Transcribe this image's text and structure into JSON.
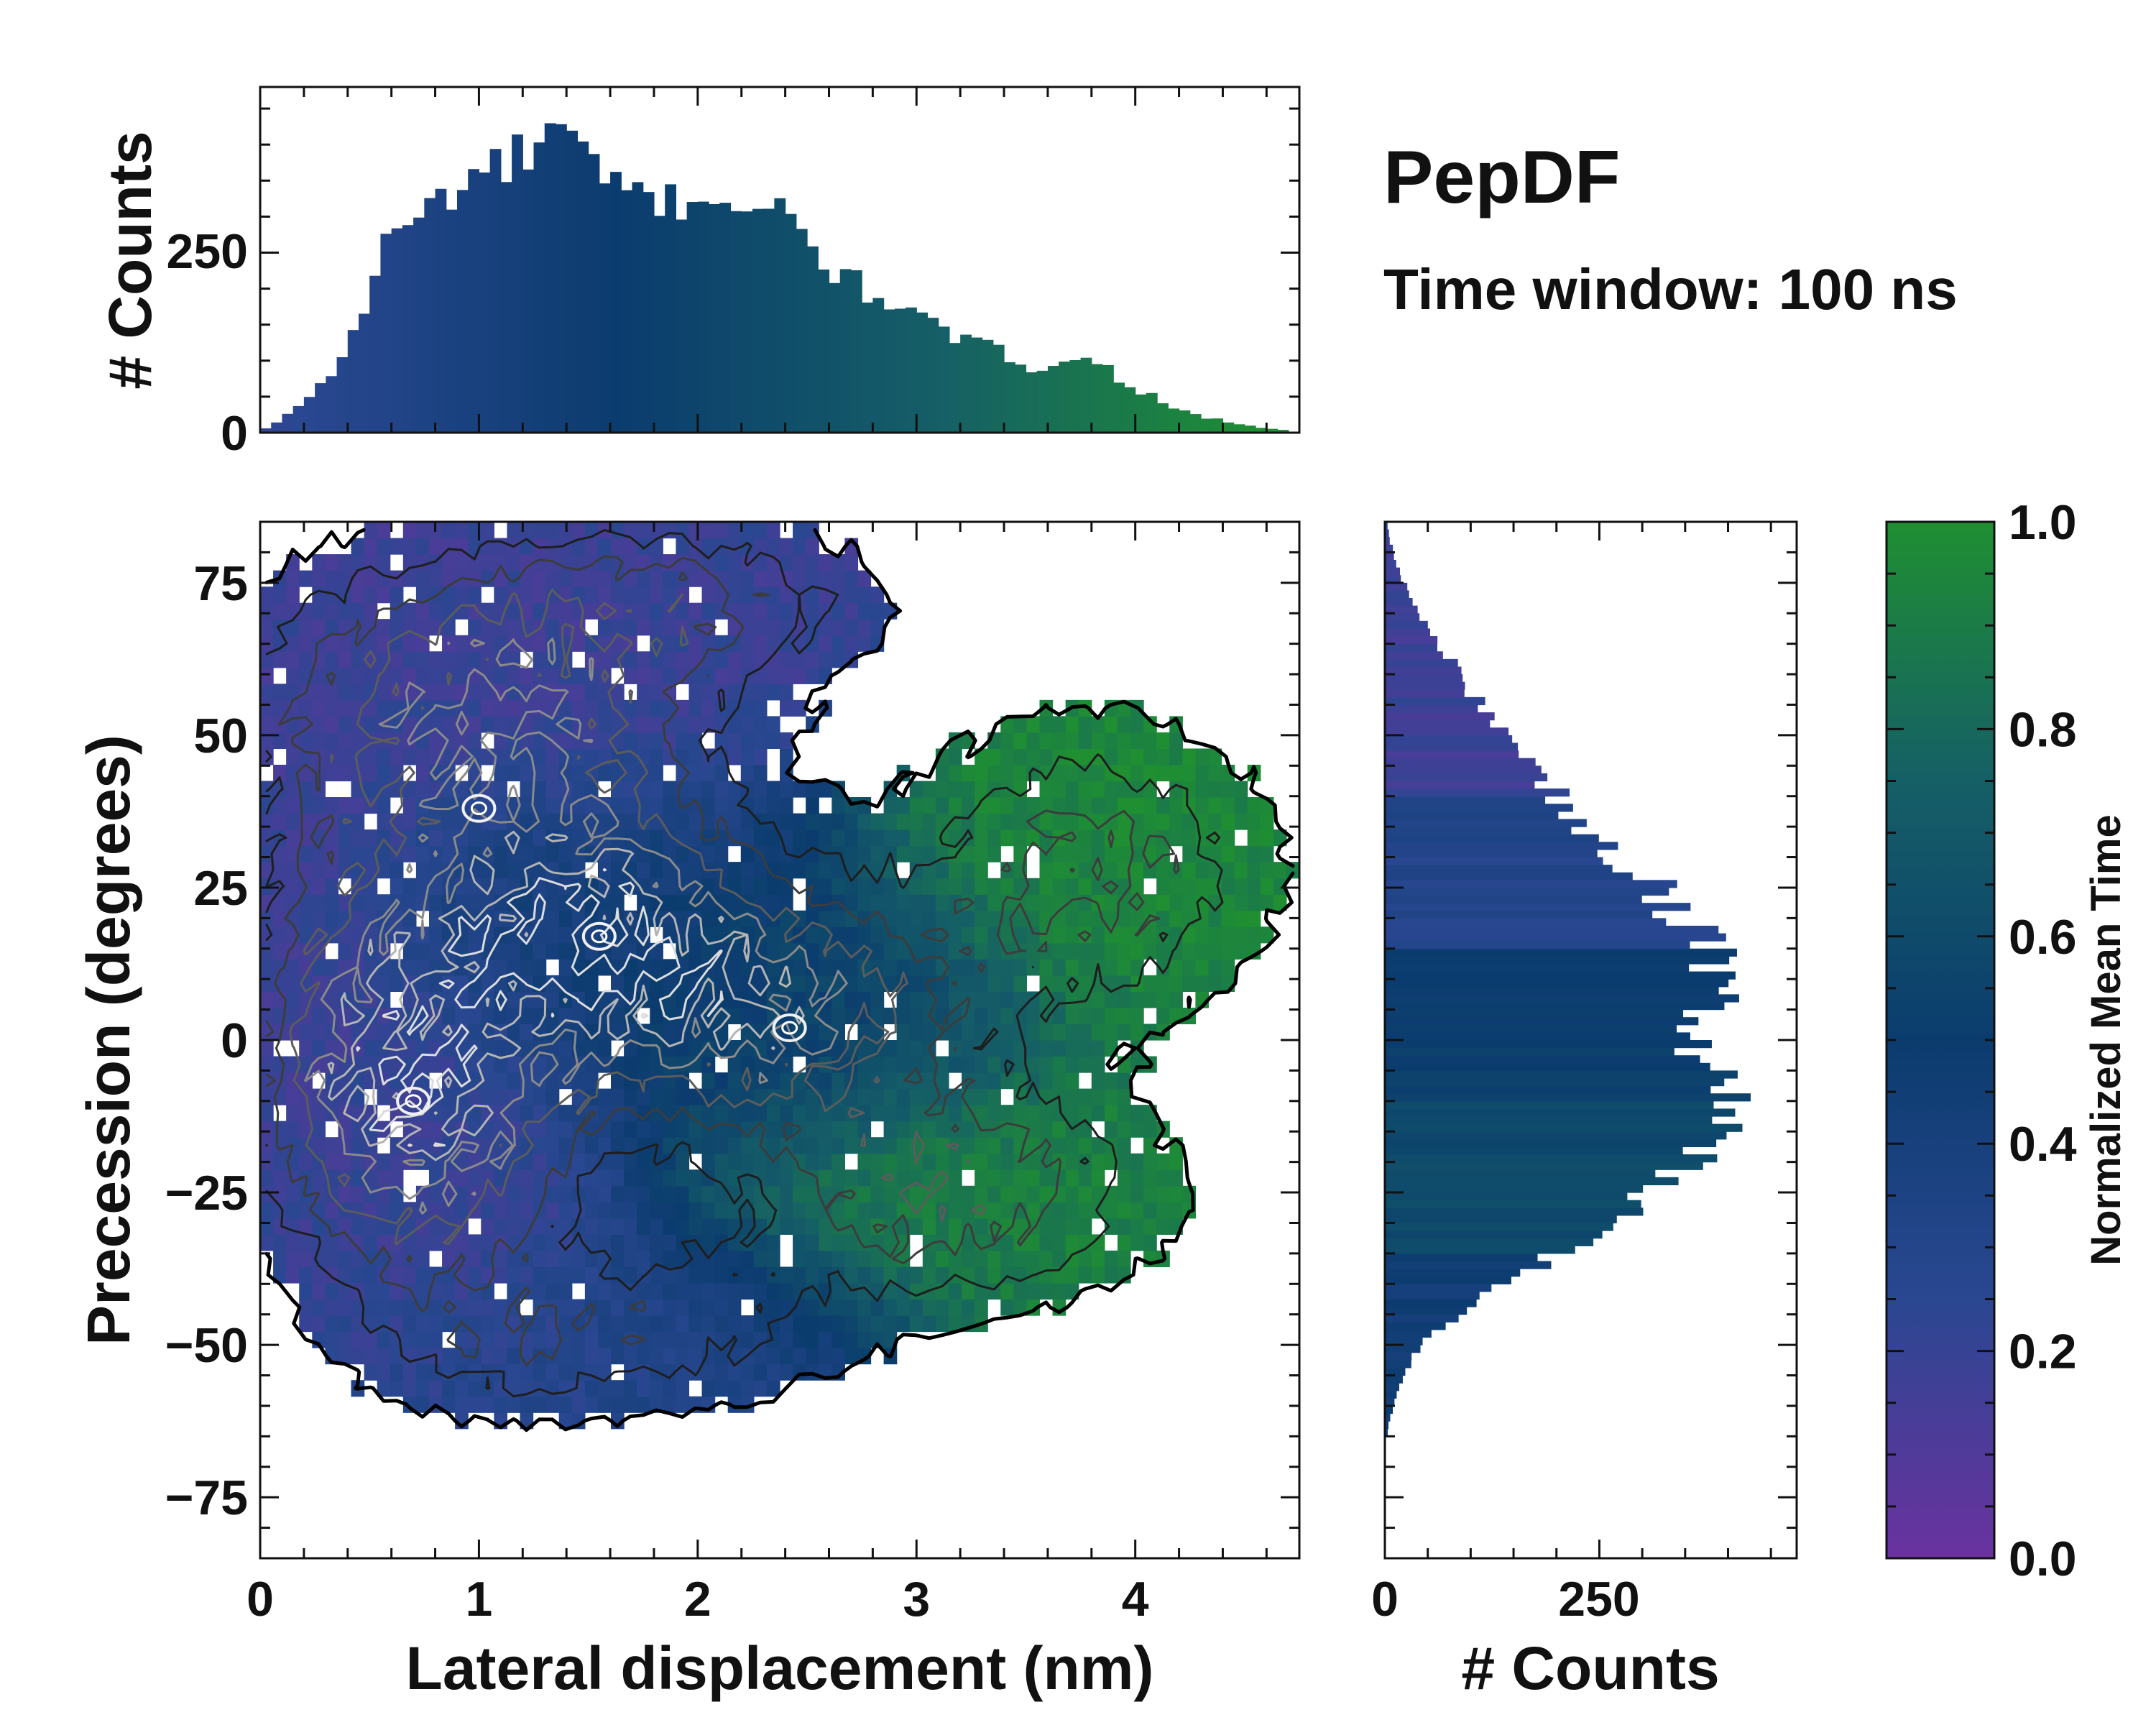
{
  "chart_data": [
    {
      "name": "top-marginal-histogram",
      "type": "bar",
      "xlim": [
        0,
        4.75
      ],
      "ylim": [
        0,
        480
      ],
      "ylabel": "# Counts",
      "yticks": [
        0,
        250
      ],
      "yticks_labels": [
        "0",
        "250"
      ],
      "bin_width": 0.05,
      "x": [
        0.05,
        0.15,
        0.25,
        0.35,
        0.45,
        0.55,
        0.65,
        0.75,
        0.85,
        0.95,
        1.05,
        1.15,
        1.25,
        1.35,
        1.45,
        1.55,
        1.65,
        1.75,
        1.85,
        1.95,
        2.05,
        2.15,
        2.25,
        2.35,
        2.45,
        2.55,
        2.65,
        2.75,
        2.85,
        2.95,
        3.05,
        3.15,
        3.25,
        3.35,
        3.45,
        3.55,
        3.65,
        3.75,
        3.85,
        3.95,
        4.05,
        4.15,
        4.25,
        4.35,
        4.45,
        4.55,
        4.65
      ],
      "values": [
        8,
        30,
        60,
        90,
        150,
        250,
        285,
        310,
        330,
        350,
        365,
        375,
        390,
        425,
        395,
        345,
        335,
        330,
        320,
        325,
        330,
        325,
        315,
        305,
        285,
        245,
        220,
        200,
        190,
        170,
        150,
        135,
        130,
        115,
        100,
        90,
        105,
        100,
        95,
        70,
        55,
        40,
        25,
        20,
        12,
        8,
        5
      ]
    },
    {
      "name": "right-marginal-histogram",
      "type": "bar",
      "orientation": "horizontal",
      "ylim": [
        -85,
        85
      ],
      "xlim": [
        0,
        480
      ],
      "xlabel": "# Counts",
      "xticks": [
        0,
        250
      ],
      "xticks_labels": [
        "0",
        "250"
      ],
      "bin_width": 2.5,
      "y": [
        -62.5,
        -57.5,
        -52.5,
        -47.5,
        -42.5,
        -37.5,
        -32.5,
        -27.5,
        -22.5,
        -17.5,
        -12.5,
        -7.5,
        -2.5,
        2.5,
        7.5,
        12.5,
        17.5,
        22.5,
        27.5,
        32.5,
        37.5,
        42.5,
        47.5,
        52.5,
        57.5,
        62.5,
        67.5,
        72.5,
        77.5,
        82.5
      ],
      "values": [
        5,
        15,
        30,
        60,
        110,
        170,
        230,
        280,
        320,
        380,
        420,
        395,
        360,
        350,
        380,
        390,
        370,
        330,
        300,
        250,
        210,
        190,
        150,
        120,
        100,
        75,
        50,
        30,
        15,
        5
      ]
    },
    {
      "name": "joint-density-map",
      "type": "heatmap",
      "xlabel": "Lateral displacement (nm)",
      "ylabel": "Precession (degrees)",
      "xlim": [
        0,
        4.75
      ],
      "ylim": [
        -85,
        85
      ],
      "xticks": [
        0,
        1,
        2,
        3,
        4
      ],
      "xticks_labels": [
        "0",
        "1",
        "2",
        "3",
        "4"
      ],
      "yticks": [
        -75,
        -50,
        -25,
        0,
        25,
        50,
        75
      ],
      "yticks_labels": [
        "−75",
        "−50",
        "−25",
        "0",
        "25",
        "50",
        "75"
      ],
      "color_meaning": "Normalized Mean Time",
      "blobs": [
        {
          "x": 1.0,
          "y": 55,
          "sx": 0.7,
          "sy": 16,
          "w": 1.0,
          "t": 0.18
        },
        {
          "x": 1.4,
          "y": 20,
          "sx": 0.5,
          "sy": 14,
          "w": 1.3,
          "t": 0.42
        },
        {
          "x": 0.75,
          "y": -12,
          "sx": 0.45,
          "sy": 18,
          "w": 1.3,
          "t": 0.2
        },
        {
          "x": 2.3,
          "y": 5,
          "sx": 0.6,
          "sy": 14,
          "w": 1.1,
          "t": 0.55
        },
        {
          "x": 3.8,
          "y": 28,
          "sx": 0.55,
          "sy": 16,
          "w": 0.6,
          "t": 0.95
        },
        {
          "x": 3.2,
          "y": -25,
          "sx": 0.6,
          "sy": 12,
          "w": 0.7,
          "t": 0.92
        },
        {
          "x": 2.1,
          "y": -45,
          "sx": 0.5,
          "sy": 10,
          "w": 0.35,
          "t": 0.35
        },
        {
          "x": 2.0,
          "y": 72,
          "sx": 0.6,
          "sy": 9,
          "w": 0.45,
          "t": 0.2
        },
        {
          "x": 0.4,
          "y": 12,
          "sx": 0.3,
          "sy": 20,
          "w": 0.5,
          "t": 0.15
        },
        {
          "x": 1.2,
          "y": -50,
          "sx": 0.5,
          "sy": 9,
          "w": 0.4,
          "t": 0.28
        }
      ],
      "peaks": [
        {
          "x": 2.42,
          "y": 2,
          "t": 0.55
        },
        {
          "x": 1.55,
          "y": 17,
          "t": 0.45
        },
        {
          "x": 0.7,
          "y": -10,
          "t": 0.22
        },
        {
          "x": 1.0,
          "y": 38,
          "t": 0.3
        }
      ]
    },
    {
      "name": "colorbar",
      "type": "colorbar",
      "label": "Normalized Mean Time",
      "range": [
        0,
        1
      ],
      "ticks": [
        0.0,
        0.2,
        0.4,
        0.6,
        0.8,
        1.0
      ],
      "ticks_labels": [
        "0.0",
        "0.2",
        "0.4",
        "0.6",
        "0.8",
        "1.0"
      ],
      "colormap": [
        "#6a329f",
        "#2a4791",
        "#0b3c6e",
        "#155f66",
        "#1f8f32"
      ]
    }
  ],
  "annotation": {
    "title": "PepDF",
    "subtitle": "Time window: 100 ns"
  }
}
